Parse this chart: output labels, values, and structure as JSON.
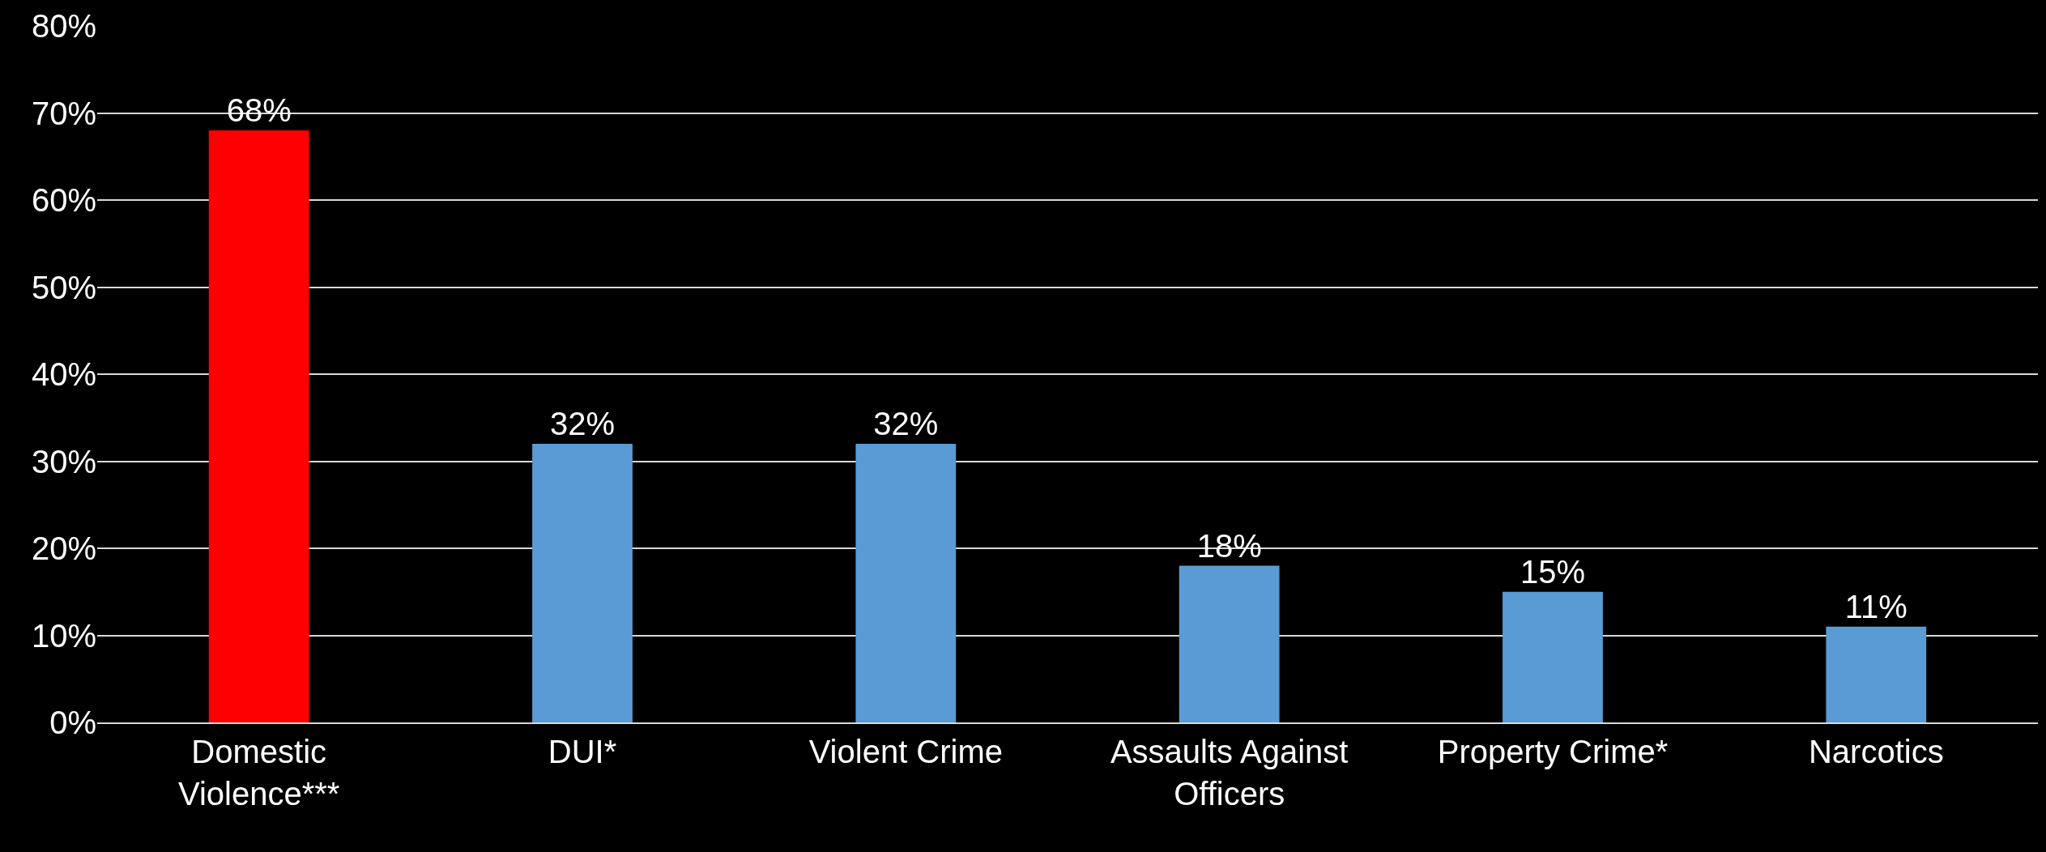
{
  "chart_data": {
    "type": "bar",
    "categories": [
      "Domestic Violence***",
      "DUI*",
      "Violent Crime",
      "Assaults Against Officers",
      "Property Crime*",
      "Narcotics"
    ],
    "values": [
      68,
      32,
      32,
      18,
      15,
      11
    ],
    "colors": [
      "#ff0000",
      "#5b9bd5",
      "#5b9bd5",
      "#5b9bd5",
      "#5b9bd5",
      "#5b9bd5"
    ],
    "value_labels": [
      "68%",
      "32%",
      "32%",
      "18%",
      "15%",
      "11%"
    ],
    "ylim": [
      0,
      80
    ],
    "yticks": [
      {
        "value": 0,
        "label": "0%"
      },
      {
        "value": 10,
        "label": "10%"
      },
      {
        "value": 20,
        "label": "20%"
      },
      {
        "value": 30,
        "label": "30%"
      },
      {
        "value": 40,
        "label": "40%"
      },
      {
        "value": 50,
        "label": "50%"
      },
      {
        "value": 60,
        "label": "60%"
      },
      {
        "value": 70,
        "label": "70%"
      },
      {
        "value": 80,
        "label": "80%"
      }
    ],
    "grid": "y",
    "legend": false
  }
}
